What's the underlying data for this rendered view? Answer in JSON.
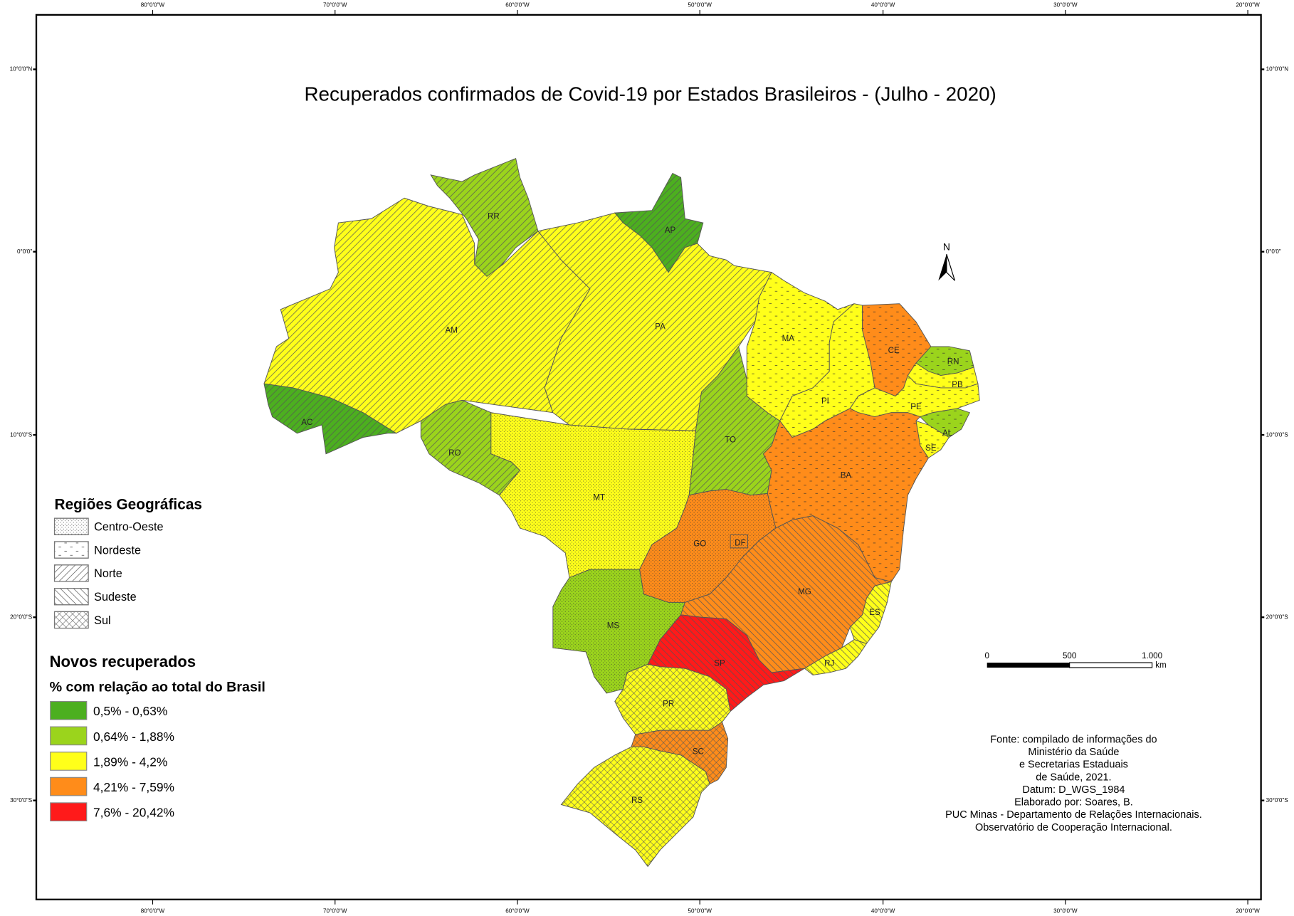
{
  "title": "Recuperados confirmados de Covid-19 por Estados Brasileiros - (Julho - 2020)",
  "axis": {
    "longitudes": [
      "80°0'0\"W",
      "70°0'0\"W",
      "60°0'0\"W",
      "50°0'0\"W",
      "40°0'0\"W",
      "30°0'0\"W",
      "20°0'0\"W"
    ],
    "latitudes": [
      "10°0'0\"N",
      "0°0'0\"",
      "10°0'0\"S",
      "20°0'0\"S",
      "30°0'0\"S"
    ]
  },
  "north_arrow": "N",
  "scale_bar": {
    "labels": [
      "0",
      "500",
      "1.000"
    ],
    "unit": "km"
  },
  "legend_regions": {
    "title": "Regiões Geográficas",
    "items": [
      {
        "label": "Centro-Oeste",
        "pattern": "dots"
      },
      {
        "label": "Nordeste",
        "pattern": "dashes"
      },
      {
        "label": "Norte",
        "pattern": "diagonal-forward"
      },
      {
        "label": "Sudeste",
        "pattern": "diagonal-back"
      },
      {
        "label": "Sul",
        "pattern": "crosshatch"
      }
    ]
  },
  "legend_classes": {
    "title": "Novos recuperados",
    "subtitle": "% com relação ao total do Brasil",
    "items": [
      {
        "label": "0,5% - 0,63%",
        "color": "#4caf1f"
      },
      {
        "label": "0,64% - 1,88%",
        "color": "#9bd41c"
      },
      {
        "label": "1,89% - 4,2%",
        "color": "#ffff1a"
      },
      {
        "label": "4,21% - 7,59%",
        "color": "#ff8c1a"
      },
      {
        "label": "7,6% - 20,42%",
        "color": "#ff1a1a"
      }
    ]
  },
  "states": [
    {
      "code": "RR",
      "class": 1,
      "region": "Norte"
    },
    {
      "code": "AP",
      "class": 0,
      "region": "Norte"
    },
    {
      "code": "AM",
      "class": 2,
      "region": "Norte"
    },
    {
      "code": "AC",
      "class": 0,
      "region": "Norte"
    },
    {
      "code": "RO",
      "class": 1,
      "region": "Norte"
    },
    {
      "code": "PA",
      "class": 2,
      "region": "Norte"
    },
    {
      "code": "TO",
      "class": 1,
      "region": "Norte"
    },
    {
      "code": "MA",
      "class": 2,
      "region": "Nordeste"
    },
    {
      "code": "PI",
      "class": 2,
      "region": "Nordeste"
    },
    {
      "code": "CE",
      "class": 3,
      "region": "Nordeste"
    },
    {
      "code": "RN",
      "class": 1,
      "region": "Nordeste"
    },
    {
      "code": "PB",
      "class": 2,
      "region": "Nordeste"
    },
    {
      "code": "PE",
      "class": 2,
      "region": "Nordeste"
    },
    {
      "code": "AL",
      "class": 1,
      "region": "Nordeste"
    },
    {
      "code": "SE",
      "class": 2,
      "region": "Nordeste"
    },
    {
      "code": "BA",
      "class": 3,
      "region": "Nordeste"
    },
    {
      "code": "MT",
      "class": 2,
      "region": "Centro-Oeste"
    },
    {
      "code": "GO",
      "class": 3,
      "region": "Centro-Oeste"
    },
    {
      "code": "DF",
      "class": 3,
      "region": "Centro-Oeste"
    },
    {
      "code": "MS",
      "class": 1,
      "region": "Centro-Oeste"
    },
    {
      "code": "MG",
      "class": 3,
      "region": "Sudeste"
    },
    {
      "code": "ES",
      "class": 2,
      "region": "Sudeste"
    },
    {
      "code": "RJ",
      "class": 2,
      "region": "Sudeste"
    },
    {
      "code": "SP",
      "class": 4,
      "region": "Sudeste"
    },
    {
      "code": "PR",
      "class": 2,
      "region": "Sul"
    },
    {
      "code": "SC",
      "class": 3,
      "region": "Sul"
    },
    {
      "code": "RS",
      "class": 2,
      "region": "Sul"
    }
  ],
  "source_note": [
    "Fonte: compilado de informações do",
    "Ministério da Saúde",
    "e Secretarias Estaduais",
    "de Saúde, 2021.",
    "Datum: D_WGS_1984",
    "Elaborado por: Soares, B.",
    "PUC Minas - Departamento de Relações Internacionais.",
    "Observatório de Cooperação Internacional."
  ]
}
